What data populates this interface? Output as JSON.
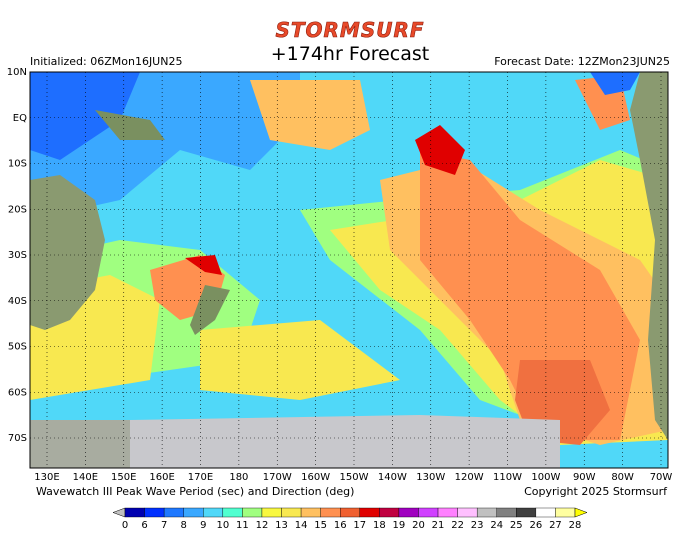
{
  "header": {
    "logo": "STORMSURF",
    "title": "+174hr Forecast",
    "initialized": "Initialized: 06ZMon16JUN25",
    "forecast_date": "Forecast Date: 12ZMon23JUN25"
  },
  "map": {
    "lat_labels": [
      "10N",
      "EQ",
      "10S",
      "20S",
      "30S",
      "40S",
      "50S",
      "60S",
      "70S"
    ],
    "lon_labels": [
      "130E",
      "140E",
      "150E",
      "160E",
      "170E",
      "180",
      "170W",
      "160W",
      "150W",
      "140W",
      "130W",
      "120W",
      "110W",
      "100W",
      "90W",
      "80W",
      "70W"
    ]
  },
  "footer": {
    "caption": "Wavewatch III Peak Wave Period (sec) and Direction (deg)",
    "copyright": "Copyright 2025 Stormsurf"
  },
  "legend": {
    "labels": [
      "0",
      "6",
      "7",
      "8",
      "9",
      "10",
      "11",
      "12",
      "13",
      "14",
      "15",
      "16",
      "17",
      "18",
      "19",
      "20",
      "21",
      "22",
      "23",
      "24",
      "25",
      "26",
      "27",
      "28"
    ],
    "colors": [
      "#0000b0",
      "#0030ff",
      "#1e78ff",
      "#3aa8ff",
      "#50d8f8",
      "#50ffd0",
      "#a0ff80",
      "#f8f840",
      "#f8e850",
      "#ffc060",
      "#ff9050",
      "#f06030",
      "#e00000",
      "#c00040",
      "#a000c0",
      "#d040ff",
      "#ff80ff",
      "#ffc0ff",
      "#c0c0c0",
      "#808080",
      "#404040",
      "#ffffff",
      "#ffffa0",
      "#ffff00"
    ]
  }
}
